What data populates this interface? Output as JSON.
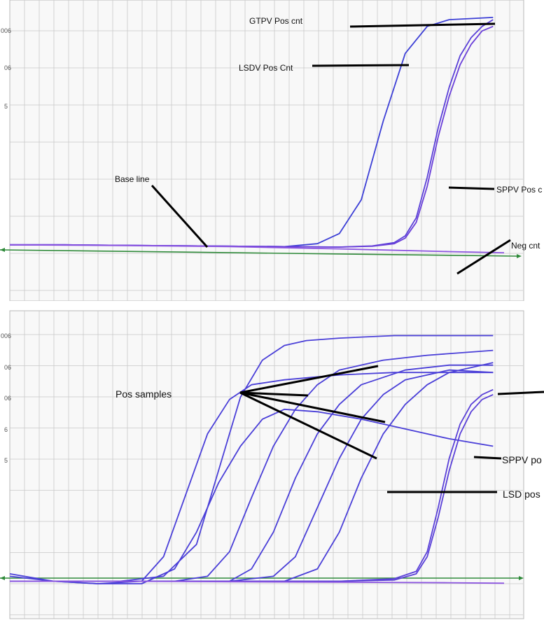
{
  "chart_data": [
    {
      "type": "line",
      "title": "",
      "xlabel": "",
      "ylabel": "",
      "grid": true,
      "xlim": [
        0,
        45
      ],
      "ylim": [
        -0.1,
        1.05
      ],
      "ytick_labels": [
        "006",
        "06",
        "5"
      ],
      "baseline": {
        "label": "Base line",
        "y": 0.08,
        "color": "#2f8a3a"
      },
      "series": [
        {
          "name": "GTPV Pos cnt",
          "color": "#3c3fd6",
          "x": [
            0,
            5,
            10,
            15,
            20,
            25,
            28,
            30,
            32,
            34,
            36,
            38,
            40,
            42,
            44
          ],
          "y": [
            0.0,
            0.0,
            -0.002,
            -0.004,
            -0.006,
            -0.008,
            0.005,
            0.05,
            0.2,
            0.55,
            0.85,
            0.97,
            1.0,
            1.005,
            1.01
          ]
        },
        {
          "name": "LSDV Pos Cnt",
          "color": "#5a40d8",
          "x": [
            0,
            5,
            10,
            15,
            20,
            25,
            30,
            33,
            35,
            36,
            37,
            38,
            39,
            40,
            41,
            42,
            43,
            44
          ],
          "y": [
            0.0,
            0.0,
            -0.002,
            -0.004,
            -0.006,
            -0.008,
            -0.01,
            -0.005,
            0.01,
            0.04,
            0.12,
            0.3,
            0.52,
            0.7,
            0.84,
            0.92,
            0.97,
            1.0
          ]
        },
        {
          "name": "SPPV Pos cnt",
          "color": "#6a3fd9",
          "x": [
            0,
            5,
            10,
            15,
            20,
            25,
            30,
            33,
            35,
            36,
            37,
            38,
            39,
            40,
            41,
            42,
            43,
            44
          ],
          "y": [
            0.0,
            0.0,
            -0.002,
            -0.004,
            -0.006,
            -0.008,
            -0.01,
            -0.006,
            0.005,
            0.03,
            0.1,
            0.26,
            0.48,
            0.66,
            0.8,
            0.89,
            0.95,
            0.97
          ]
        },
        {
          "name": "Neg cnt",
          "color": "#8c55e0",
          "x": [
            0,
            10,
            20,
            30,
            40,
            45
          ],
          "y": [
            0.0,
            -0.003,
            -0.008,
            -0.018,
            -0.03,
            -0.035
          ]
        }
      ],
      "annotations": [
        {
          "text": "GTPV Pos cnt"
        },
        {
          "text": "LSDV Pos Cnt"
        },
        {
          "text": "SPPV Pos c"
        },
        {
          "text": "Base line"
        },
        {
          "text": "Neg cnt"
        }
      ]
    },
    {
      "type": "line",
      "title": "",
      "xlabel": "",
      "ylabel": "",
      "grid": true,
      "xlim": [
        0,
        45
      ],
      "ylim": [
        -0.05,
        1.05
      ],
      "ytick_labels": [
        "006",
        "06",
        "06",
        "6",
        "5"
      ],
      "baseline": {
        "y": 0.05,
        "color": "#2f8a3a"
      },
      "series": [
        {
          "color": "#4a3fd8",
          "x": [
            0,
            5,
            10,
            14,
            17,
            19,
            21,
            23,
            25,
            27,
            30,
            35,
            40,
            44
          ],
          "y": [
            0.0,
            0.0,
            0.0,
            0.02,
            0.15,
            0.45,
            0.75,
            0.9,
            0.96,
            0.98,
            0.99,
            1.0,
            1.0,
            1.0
          ]
        },
        {
          "color": "#4a3fd8",
          "x": [
            0,
            4,
            8,
            12,
            14,
            16,
            18,
            20,
            22,
            25,
            30,
            35,
            40,
            44
          ],
          "y": [
            0.03,
            0.0,
            -0.01,
            0.0,
            0.1,
            0.35,
            0.6,
            0.74,
            0.8,
            0.82,
            0.84,
            0.85,
            0.85,
            0.85
          ]
        },
        {
          "color": "#4a3fd8",
          "x": [
            0,
            4,
            8,
            12,
            15,
            17,
            19,
            21,
            23,
            25,
            28,
            32,
            36,
            40,
            44
          ],
          "y": [
            0.02,
            0.0,
            -0.01,
            -0.01,
            0.05,
            0.2,
            0.4,
            0.55,
            0.66,
            0.7,
            0.69,
            0.66,
            0.62,
            0.58,
            0.55
          ]
        },
        {
          "color": "#4a3fd8",
          "x": [
            0,
            5,
            10,
            15,
            18,
            20,
            22,
            24,
            26,
            28,
            30,
            34,
            38,
            44
          ],
          "y": [
            0.0,
            0.0,
            0.0,
            0.0,
            0.02,
            0.12,
            0.34,
            0.55,
            0.7,
            0.8,
            0.86,
            0.9,
            0.92,
            0.94
          ]
        },
        {
          "color": "#4a3fd8",
          "x": [
            0,
            5,
            10,
            15,
            20,
            22,
            24,
            26,
            28,
            30,
            32,
            36,
            40,
            44
          ],
          "y": [
            0.0,
            0.0,
            0.0,
            0.0,
            0.0,
            0.05,
            0.2,
            0.42,
            0.6,
            0.72,
            0.8,
            0.86,
            0.88,
            0.88
          ]
        },
        {
          "color": "#4a3fd8",
          "x": [
            0,
            5,
            10,
            15,
            20,
            24,
            26,
            28,
            30,
            32,
            34,
            36,
            40,
            44
          ],
          "y": [
            0.0,
            0.0,
            0.0,
            0.0,
            0.0,
            0.02,
            0.1,
            0.3,
            0.5,
            0.66,
            0.76,
            0.82,
            0.86,
            0.85
          ]
        },
        {
          "color": "#4a3fd8",
          "x": [
            0,
            5,
            10,
            15,
            20,
            25,
            28,
            30,
            32,
            34,
            36,
            38,
            40,
            44
          ],
          "y": [
            0.0,
            0.0,
            0.0,
            0.0,
            0.0,
            0.0,
            0.05,
            0.2,
            0.42,
            0.6,
            0.72,
            0.8,
            0.85,
            0.89
          ]
        },
        {
          "name": "SPPV po",
          "color": "#5a40d8",
          "x": [
            0,
            10,
            20,
            30,
            35,
            37,
            38,
            39,
            40,
            41,
            42,
            43,
            44
          ],
          "y": [
            0.0,
            0.0,
            0.0,
            0.0,
            0.01,
            0.04,
            0.12,
            0.3,
            0.5,
            0.64,
            0.72,
            0.76,
            0.78
          ]
        },
        {
          "name": "LSD pos",
          "color": "#5a40d8",
          "x": [
            0,
            10,
            20,
            30,
            35,
            37,
            38,
            39,
            40,
            41,
            42,
            43,
            44
          ],
          "y": [
            0.0,
            0.0,
            0.0,
            0.0,
            0.005,
            0.03,
            0.1,
            0.26,
            0.45,
            0.6,
            0.69,
            0.74,
            0.76
          ]
        },
        {
          "color": "#8c55e0",
          "x": [
            0,
            10,
            20,
            30,
            40,
            45
          ],
          "y": [
            0.0,
            0.0,
            -0.002,
            -0.004,
            -0.006,
            -0.008
          ]
        }
      ],
      "annotations": [
        {
          "text": "Pos samples"
        },
        {
          "text": "SPPV po"
        },
        {
          "text": "LSD pos"
        }
      ]
    }
  ]
}
